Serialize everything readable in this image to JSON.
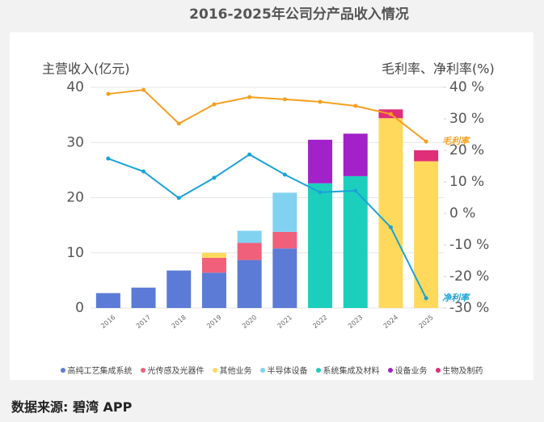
{
  "chart_data": {
    "type": "bar",
    "title": "2016-2025年公司分产品收入情况",
    "y_label": "主营收入(亿元)",
    "y2_label": "毛利率、净利率(%)",
    "source": "数据来源: 碧湾 APP",
    "categories": [
      "2016",
      "2017",
      "2018",
      "2019",
      "2020",
      "2021",
      "2022",
      "2023",
      "2024",
      "2025"
    ],
    "ylim": [
      0,
      40
    ],
    "yticks": [
      0,
      10,
      20,
      30,
      40
    ],
    "y2lim": [
      -30,
      40
    ],
    "y2ticks": [
      {
        "value": -30,
        "label": "-30 %"
      },
      {
        "value": -20,
        "label": "-20 %"
      },
      {
        "value": -10,
        "label": "-10 %"
      },
      {
        "value": 0,
        "label": "0 %"
      },
      {
        "value": 10,
        "label": "10 %"
      },
      {
        "value": 20,
        "label": "20 %"
      },
      {
        "value": 30,
        "label": "30 %"
      },
      {
        "value": 40,
        "label": "40 %"
      }
    ],
    "grid": true,
    "series": [
      {
        "name": "高纯工艺集成系统",
        "color": "#5b7bd6",
        "values": [
          2.7,
          3.7,
          6.8,
          6.4,
          8.7,
          10.8,
          null,
          null,
          null,
          null
        ]
      },
      {
        "name": "光传感及光器件",
        "color": "#f0607a",
        "values": [
          null,
          null,
          null,
          2.7,
          3.1,
          3.0,
          null,
          null,
          null,
          null
        ]
      },
      {
        "name": "其他业务",
        "color": "#ffd95c",
        "values": [
          null,
          null,
          null,
          0.9,
          null,
          null,
          null,
          null,
          34.4,
          26.6
        ]
      },
      {
        "name": "半导体设备",
        "color": "#80d2f0",
        "values": [
          null,
          null,
          null,
          null,
          2.2,
          7.1,
          null,
          null,
          null,
          null
        ]
      },
      {
        "name": "系统集成及材料",
        "color": "#1ccfbd",
        "values": [
          null,
          null,
          null,
          null,
          null,
          null,
          22.6,
          23.9,
          null,
          null
        ]
      },
      {
        "name": "设备业务",
        "color": "#a221c8",
        "values": [
          null,
          null,
          null,
          null,
          null,
          null,
          7.9,
          7.7,
          null,
          null
        ]
      },
      {
        "name": "生物及制药",
        "color": "#e02e78",
        "values": [
          null,
          null,
          null,
          null,
          null,
          null,
          null,
          null,
          1.6,
          2.0
        ]
      },
      {
        "name": "毛利率",
        "type": "line",
        "axis": "y2",
        "color": "#f5a020",
        "values": [
          37.9,
          39.2,
          28.5,
          34.6,
          36.9,
          36.2,
          35.4,
          34.1,
          31.5,
          22.8
        ]
      },
      {
        "name": "净利率",
        "type": "line",
        "axis": "y2",
        "color": "#1aa3d6",
        "values": [
          17.4,
          13.3,
          4.9,
          11.3,
          18.7,
          12.3,
          6.7,
          7.2,
          -4.4,
          -26.9
        ]
      }
    ]
  }
}
